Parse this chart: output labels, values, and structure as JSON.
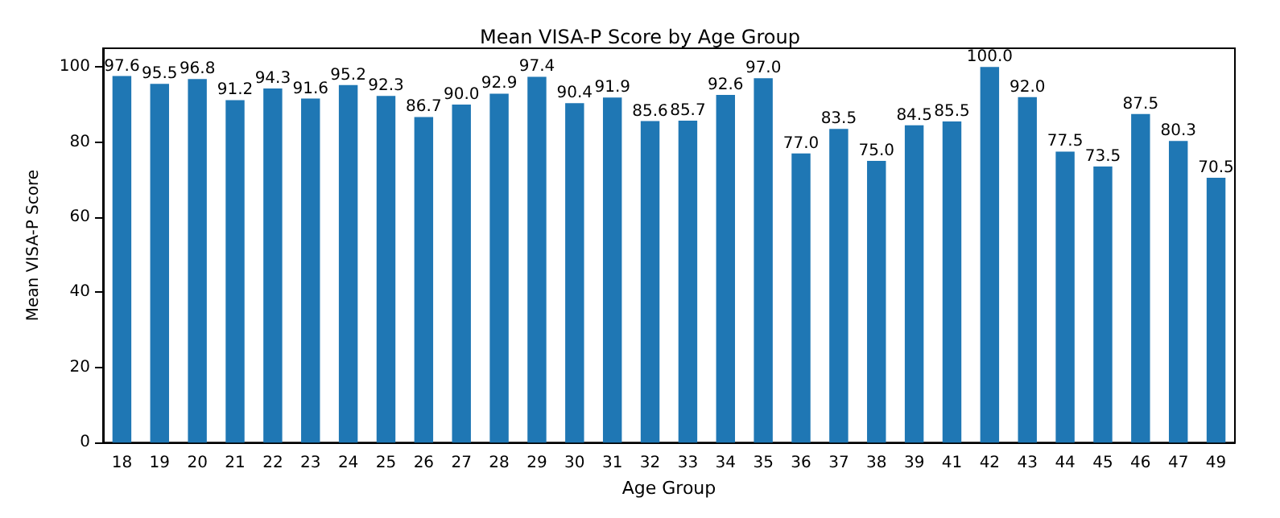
{
  "chart_data": {
    "type": "bar",
    "title": "Mean VISA-P Score by Age Group",
    "xlabel": "Age Group",
    "ylabel": "Mean VISA-P Score",
    "categories": [
      "18",
      "19",
      "20",
      "21",
      "22",
      "23",
      "24",
      "25",
      "26",
      "27",
      "28",
      "29",
      "30",
      "31",
      "32",
      "33",
      "34",
      "35",
      "36",
      "37",
      "38",
      "39",
      "41",
      "42",
      "43",
      "44",
      "45",
      "46",
      "47",
      "49"
    ],
    "values": [
      97.6,
      95.5,
      96.8,
      91.2,
      94.3,
      91.6,
      95.2,
      92.3,
      86.7,
      90.0,
      92.9,
      97.4,
      90.4,
      91.9,
      85.6,
      85.7,
      92.6,
      97.0,
      77.0,
      83.5,
      75.0,
      84.5,
      85.5,
      100.0,
      92.0,
      77.5,
      73.5,
      87.5,
      80.3,
      70.5
    ],
    "value_labels": [
      "97.6",
      "95.5",
      "96.8",
      "91.2",
      "94.3",
      "91.6",
      "95.2",
      "92.3",
      "86.7",
      "90.0",
      "92.9",
      "97.4",
      "90.4",
      "91.9",
      "85.6",
      "85.7",
      "92.6",
      "97.0",
      "77.0",
      "83.5",
      "75.0",
      "84.5",
      "85.5",
      "100.0",
      "92.0",
      "77.5",
      "73.5",
      "87.5",
      "80.3",
      "70.5"
    ],
    "color": "#1f77b4",
    "ylim": [
      0,
      105
    ],
    "yticks": [
      0,
      20,
      40,
      60,
      80,
      100
    ],
    "grid": false
  }
}
